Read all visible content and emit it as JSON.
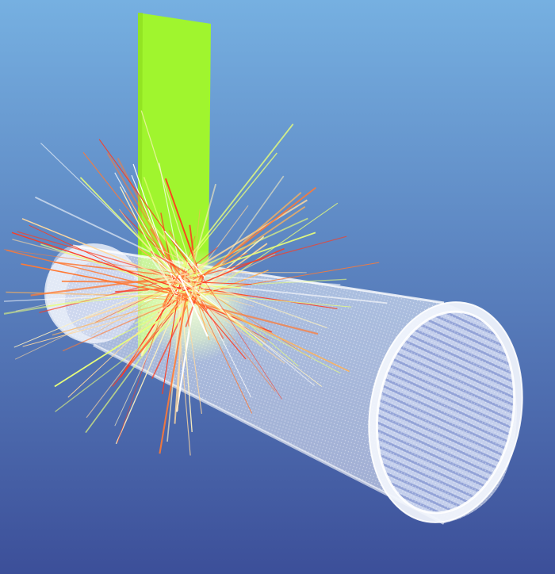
{
  "scene": {
    "background_top": "#76b0e1",
    "background_bottom": "#3c4f99",
    "plate_color": "#a0f52e",
    "tube_color": "#eef2fb",
    "tube_inner_color": "#aab8de",
    "tube_stripe_color": "#6b80c6",
    "plate_glow_color": "#eaffc6",
    "particle_colors": [
      "#ff3b1f",
      "#ff7a35",
      "#ffb35a",
      "#ffd9a0",
      "#fff2c0",
      "#e9ff7a",
      "#ffffff"
    ],
    "objects": [
      "green-plate",
      "transparent-tube",
      "particle-tracks"
    ]
  }
}
